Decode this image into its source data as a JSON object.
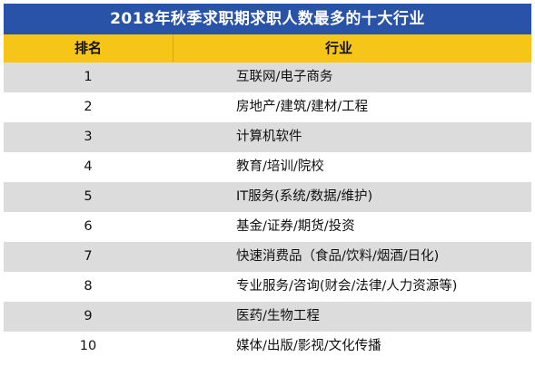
{
  "title": "2018年秋季求职期求职人数最多的十大行业",
  "colors": {
    "title_bg": "#2953a8",
    "header_bg": "#f5c518",
    "row_odd_bg": "#dcdcdc",
    "row_even_bg": "#ffffff"
  },
  "headers": {
    "rank": "排名",
    "industry": "行业"
  },
  "rows": [
    {
      "rank": "1",
      "industry": "互联网/电子商务"
    },
    {
      "rank": "2",
      "industry": "房地产/建筑/建材/工程"
    },
    {
      "rank": "3",
      "industry": "计算机软件"
    },
    {
      "rank": "4",
      "industry": "教育/培训/院校"
    },
    {
      "rank": "5",
      "industry": "IT服务(系统/数据/维护)"
    },
    {
      "rank": "6",
      "industry": "基金/证券/期货/投资"
    },
    {
      "rank": "7",
      "industry": "快速消费品（食品/饮料/烟酒/日化)"
    },
    {
      "rank": "8",
      "industry": "专业服务/咨询(财会/法律/人力资源等)"
    },
    {
      "rank": "9",
      "industry": "医药/生物工程"
    },
    {
      "rank": "10",
      "industry": "媒体/出版/影视/文化传播"
    }
  ]
}
